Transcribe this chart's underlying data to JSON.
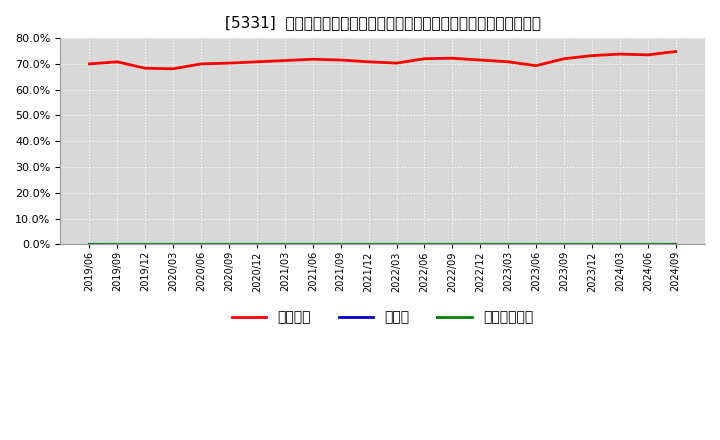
{
  "title": "[5331]  自己資本、のれん、繰延税金資産の総資産に対する比率の推移",
  "background_color": "#ffffff",
  "plot_bg_color": "#e8e8e8",
  "grid_color": "#ffffff",
  "x_labels": [
    "2019/06",
    "2019/09",
    "2019/12",
    "2020/03",
    "2020/06",
    "2020/09",
    "2020/12",
    "2021/03",
    "2021/06",
    "2021/09",
    "2021/12",
    "2022/03",
    "2022/06",
    "2022/09",
    "2022/12",
    "2023/03",
    "2023/06",
    "2023/09",
    "2023/12",
    "2024/03",
    "2024/06",
    "2024/09"
  ],
  "series": [
    {
      "name": "自己資本",
      "color": "#ff0000",
      "linewidth": 2.0,
      "values": [
        70.0,
        70.8,
        68.3,
        68.1,
        70.0,
        70.3,
        70.8,
        71.3,
        71.8,
        71.5,
        70.8,
        70.3,
        72.0,
        72.2,
        71.5,
        70.8,
        69.3,
        72.0,
        73.2,
        73.8,
        73.5,
        74.8
      ]
    },
    {
      "name": "のれん",
      "color": "#0000cc",
      "linewidth": 1.5,
      "values": [
        0.0,
        0.0,
        0.0,
        0.0,
        0.0,
        0.0,
        0.0,
        0.0,
        0.0,
        0.0,
        0.0,
        0.0,
        0.0,
        0.0,
        0.0,
        0.0,
        0.0,
        0.0,
        0.0,
        0.0,
        0.0,
        0.0
      ]
    },
    {
      "name": "繰延税金資産",
      "color": "#008000",
      "linewidth": 1.5,
      "values": [
        0.0,
        0.0,
        0.0,
        0.0,
        0.0,
        0.0,
        0.0,
        0.0,
        0.0,
        0.0,
        0.0,
        0.0,
        0.0,
        0.0,
        0.0,
        0.0,
        0.0,
        0.0,
        0.0,
        0.0,
        0.0,
        0.0
      ]
    }
  ],
  "ylim": [
    0.0,
    80.0
  ],
  "yticks": [
    0.0,
    10.0,
    20.0,
    30.0,
    40.0,
    50.0,
    60.0,
    70.0,
    80.0
  ],
  "legend_labels": [
    "自己資本",
    "のれん",
    "繰延税金資産"
  ],
  "legend_colors": [
    "#ff0000",
    "#0000cc",
    "#008000"
  ],
  "title_prefix": "[5331]",
  "title_fontsize": 11,
  "tick_fontsize": 7,
  "ytick_fontsize": 8
}
